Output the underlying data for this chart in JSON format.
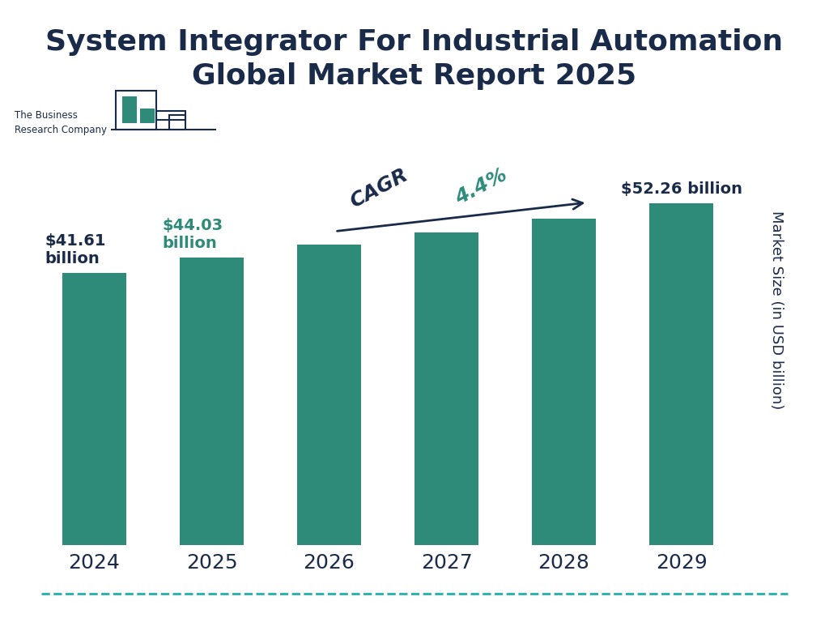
{
  "title": "System Integrator For Industrial Automation\nGlobal Market Report 2025",
  "years": [
    "2024",
    "2025",
    "2026",
    "2027",
    "2028",
    "2029"
  ],
  "values": [
    41.61,
    44.03,
    46.0,
    47.85,
    49.9,
    52.26
  ],
  "bar_color": "#2e8b7a",
  "ylabel": "Market Size (in USD billion)",
  "title_color": "#1a2b4a",
  "title_fontsize": 26,
  "label_2024": "$41.61\nbillion",
  "label_2025": "$44.03\nbillion",
  "label_2029": "$52.26 billion",
  "label_color_2024": "#1a2b4a",
  "label_color_2025": "#2e8b7a",
  "label_color_2029": "#1a2b4a",
  "cagr_text": "CAGR  4.4%",
  "cagr_color": "#2e8b7a",
  "cagr_dark_color": "#1a2b4a",
  "arrow_color": "#1a2b4a",
  "background_color": "#ffffff",
  "dashed_line_color": "#20b2aa",
  "logo_text": "The Business\nResearch Company",
  "ylim": [
    0,
    72
  ],
  "bar_width": 0.55
}
